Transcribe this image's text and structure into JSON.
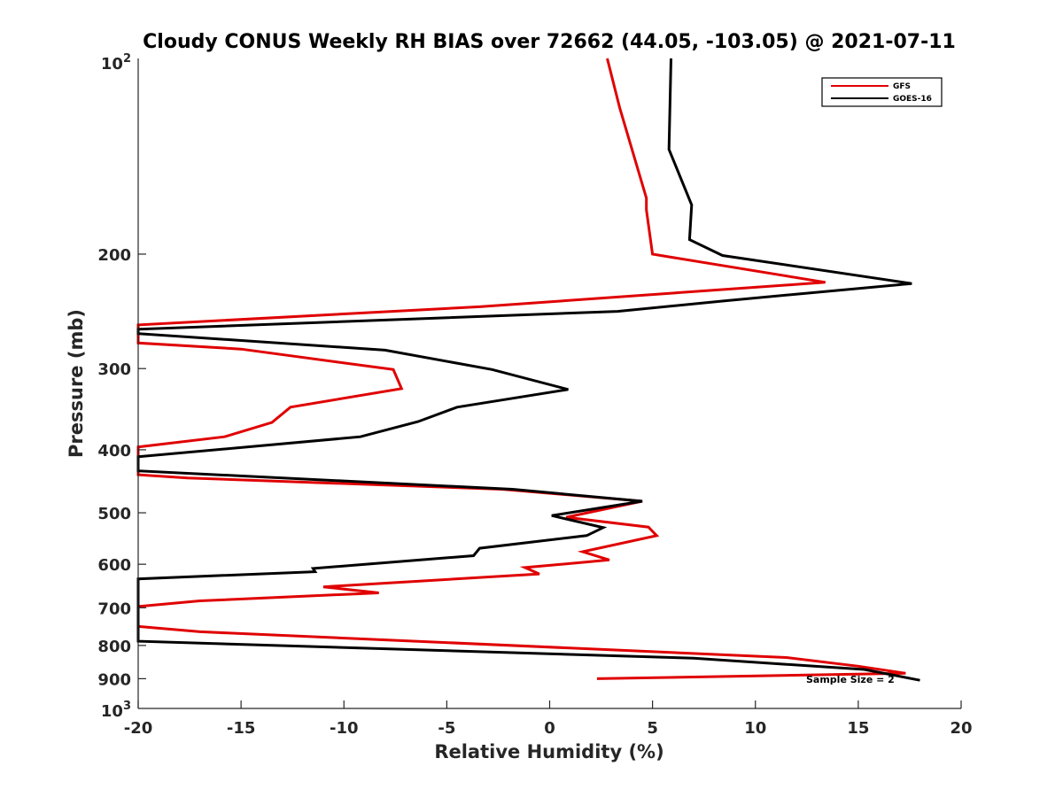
{
  "chart_data": {
    "type": "line",
    "title": "Cloudy CONUS Weekly RH BIAS over 72662 (44.05, -103.05) @ 2021-07-11",
    "xlabel": "Relative Humidity (%)",
    "ylabel": "Pressure (mb)",
    "xlim": [
      -20,
      20
    ],
    "ylim": [
      100,
      1000
    ],
    "y_scale": "log",
    "y_reversed": true,
    "grid": false,
    "legend_position": "top-right",
    "x_ticks": [
      {
        "value": -20,
        "label": "-20"
      },
      {
        "value": -15,
        "label": "-15"
      },
      {
        "value": -10,
        "label": "-10"
      },
      {
        "value": -5,
        "label": "-5"
      },
      {
        "value": 0,
        "label": "0"
      },
      {
        "value": 5,
        "label": "5"
      },
      {
        "value": 10,
        "label": "10"
      },
      {
        "value": 15,
        "label": "15"
      },
      {
        "value": 20,
        "label": "20"
      }
    ],
    "y_ticks": [
      {
        "value": 100,
        "label": "10",
        "sup": "2"
      },
      {
        "value": 200,
        "label": "200"
      },
      {
        "value": 300,
        "label": "300"
      },
      {
        "value": 400,
        "label": "400"
      },
      {
        "value": 500,
        "label": "500"
      },
      {
        "value": 600,
        "label": "600"
      },
      {
        "value": 700,
        "label": "700"
      },
      {
        "value": 800,
        "label": "800"
      },
      {
        "value": 900,
        "label": "900"
      },
      {
        "value": 1000,
        "label": "10",
        "sup": "3"
      }
    ],
    "series": [
      {
        "name": "GFS",
        "color": "#e00000",
        "points": [
          [
            2.3,
            900
          ],
          [
            17.3,
            883
          ],
          [
            15,
            861
          ],
          [
            11.5,
            835
          ],
          [
            -17,
            762
          ],
          [
            -20,
            748
          ],
          [
            -20,
            697
          ],
          [
            -17,
            683
          ],
          [
            -8.3,
            664
          ],
          [
            -11,
            650
          ],
          [
            -0.5,
            621
          ],
          [
            -1.2,
            607
          ],
          [
            2.9,
            591
          ],
          [
            1.6,
            574
          ],
          [
            5.2,
            542
          ],
          [
            4.8,
            526
          ],
          [
            0.8,
            508
          ],
          [
            4.5,
            480
          ],
          [
            -2.3,
            460
          ],
          [
            -17.6,
            442
          ],
          [
            -20,
            437
          ],
          [
            -20,
            396
          ],
          [
            -15.8,
            382
          ],
          [
            -13.5,
            363
          ],
          [
            -12.6,
            344
          ],
          [
            -7.2,
            322
          ],
          [
            -7.6,
            301
          ],
          [
            -15,
            280
          ],
          [
            -20,
            274
          ],
          [
            -20,
            257
          ],
          [
            -3.4,
            241
          ],
          [
            13.4,
            221
          ],
          [
            5,
            200
          ],
          [
            4.7,
            171
          ],
          [
            4.7,
            164
          ],
          [
            3.4,
            119
          ],
          [
            2.8,
            100
          ]
        ]
      },
      {
        "name": "GOES-16",
        "color": "#000000",
        "points": [
          [
            18,
            905
          ],
          [
            15.3,
            871
          ],
          [
            7,
            837
          ],
          [
            -20,
            788
          ],
          [
            -20,
            632
          ],
          [
            -11.4,
            616
          ],
          [
            -11.5,
            609
          ],
          [
            -3.7,
            582
          ],
          [
            -3.4,
            567
          ],
          [
            1.8,
            542
          ],
          [
            2.6,
            527
          ],
          [
            0.1,
            505
          ],
          [
            4.5,
            480
          ],
          [
            -1.8,
            460
          ],
          [
            -20,
            431
          ],
          [
            -20,
            410
          ],
          [
            -9.2,
            382
          ],
          [
            -6.4,
            362
          ],
          [
            -4.5,
            344
          ],
          [
            0.9,
            323
          ],
          [
            -2.8,
            301
          ],
          [
            -8,
            281
          ],
          [
            -20,
            265
          ],
          [
            -20,
            261
          ],
          [
            3.3,
            245
          ],
          [
            8.5,
            236
          ],
          [
            17.6,
            222
          ],
          [
            8.4,
            201
          ],
          [
            6.8,
            190
          ],
          [
            6.9,
            168
          ],
          [
            5.8,
            138
          ],
          [
            5.9,
            100
          ]
        ]
      }
    ],
    "annotations": [
      {
        "text": "Sample Size = 2",
        "x": 15,
        "y": 900
      }
    ]
  }
}
